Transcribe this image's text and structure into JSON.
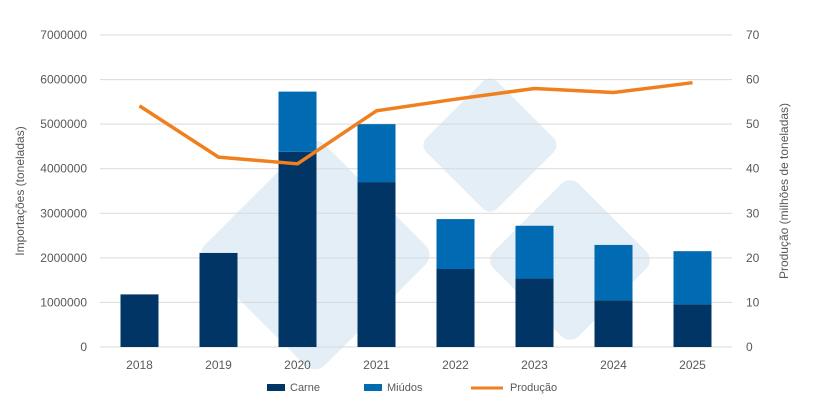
{
  "chart_data": {
    "type": "bar",
    "stacked": true,
    "categories": [
      "2018",
      "2019",
      "2020",
      "2021",
      "2022",
      "2023",
      "2024",
      "2025"
    ],
    "series": [
      {
        "name": "Carne",
        "type": "bar",
        "axis": "left",
        "color": "#003566",
        "values": [
          1180000,
          2110000,
          4380000,
          3700000,
          1750000,
          1540000,
          1050000,
          960000
        ]
      },
      {
        "name": "Miúdos",
        "type": "bar",
        "axis": "left",
        "color": "#006AB3",
        "values": [
          0,
          0,
          1350000,
          1300000,
          1120000,
          1180000,
          1240000,
          1190000
        ]
      },
      {
        "name": "Produção",
        "type": "line",
        "axis": "right",
        "color": "#F07F1E",
        "values": [
          54.1,
          42.6,
          41.1,
          53.0,
          55.6,
          58.0,
          57.1,
          59.3
        ]
      }
    ],
    "ylabel": "Importações (toneladas)",
    "y2label": "Produção (milhões de toneladas)",
    "ylim": [
      0,
      7000000
    ],
    "y2lim": [
      0,
      70
    ],
    "yticks": [
      "0",
      "1000000",
      "2000000",
      "3000000",
      "4000000",
      "5000000",
      "6000000",
      "7000000"
    ],
    "y2ticks": [
      "0",
      "10",
      "20",
      "30",
      "40",
      "50",
      "60",
      "70"
    ],
    "grid": true,
    "legend_position": "bottom"
  }
}
